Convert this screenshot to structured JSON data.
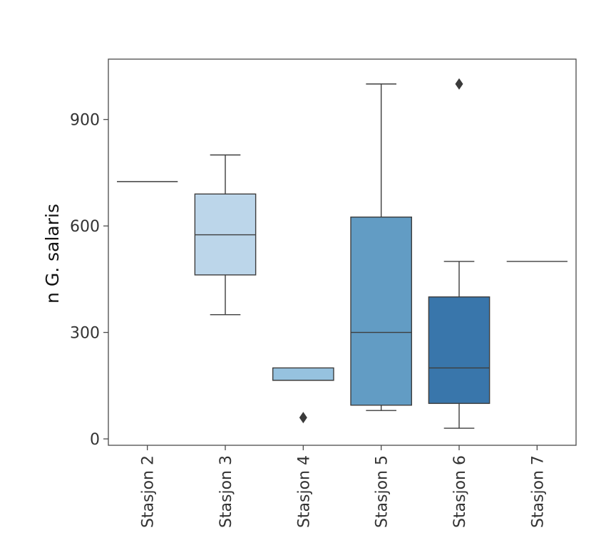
{
  "chart_data": {
    "type": "box",
    "title": "",
    "xlabel": "",
    "ylabel": "n G. salaris",
    "ylim": [
      -18,
      1070
    ],
    "yticks": [
      0,
      300,
      600,
      900
    ],
    "grid": false,
    "legend": "none",
    "categories": [
      "Stasjon 2",
      "Stasjon 3",
      "Stasjon 4",
      "Stasjon 5",
      "Stasjon 6",
      "Stasjon 7"
    ],
    "boxes": [
      {
        "category": "Stasjon 2",
        "whisker_low": 725,
        "q1": 725,
        "median": 725,
        "q3": 725,
        "whisker_high": 725,
        "outliers": [],
        "color": "#d6e6f4"
      },
      {
        "category": "Stasjon 3",
        "whisker_low": 350,
        "q1": 462,
        "median": 575,
        "q3": 690,
        "whisker_high": 800,
        "outliers": [],
        "color": "#bcd6ea"
      },
      {
        "category": "Stasjon 4",
        "whisker_low": 165,
        "q1": 165,
        "median": 165,
        "q3": 200,
        "whisker_high": 200,
        "outliers": [
          60
        ],
        "color": "#96c2df"
      },
      {
        "category": "Stasjon 5",
        "whisker_low": 80,
        "q1": 95,
        "median": 300,
        "q3": 625,
        "whisker_high": 1000,
        "outliers": [],
        "color": "#629cc4"
      },
      {
        "category": "Stasjon 6",
        "whisker_low": 30,
        "q1": 100,
        "median": 200,
        "q3": 400,
        "whisker_high": 500,
        "outliers": [
          1000
        ],
        "color": "#3976ab"
      },
      {
        "category": "Stasjon 7",
        "whisker_low": 500,
        "q1": 500,
        "median": 500,
        "q3": 500,
        "whisker_high": 500,
        "outliers": [],
        "color": "#2a5f95"
      }
    ]
  }
}
